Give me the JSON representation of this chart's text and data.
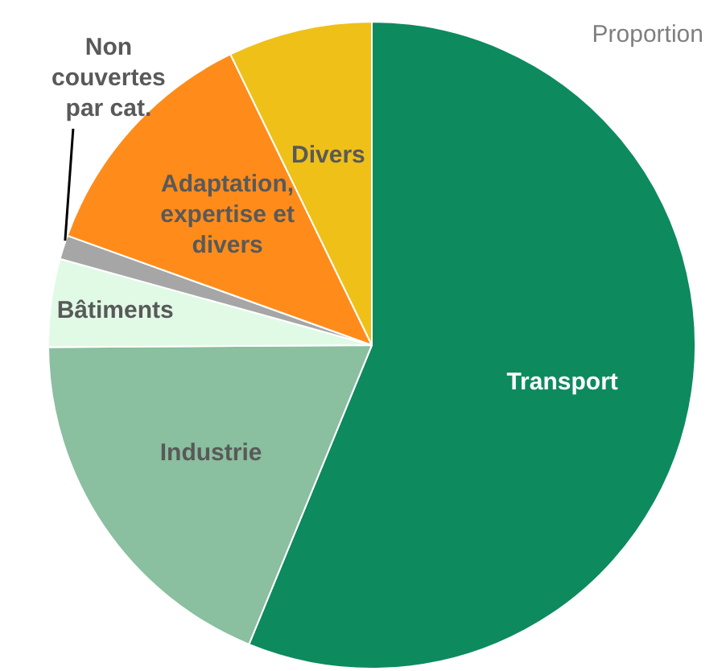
{
  "chart_data": {
    "type": "pie",
    "title": "Proportion",
    "categories": [
      "Transport",
      "Industrie",
      "Bâtiments",
      "Non couvertes par cat.",
      "Adaptation, expertise et divers",
      "Divers"
    ],
    "values": [
      56.2,
      18.7,
      4.4,
      1.2,
      12.3,
      7.2
    ],
    "colors": [
      "#0e8a5f",
      "#8abf9f",
      "#e0fae6",
      "#a6a6a6",
      "#ff8c1a",
      "#efc018"
    ],
    "legend": false
  }
}
